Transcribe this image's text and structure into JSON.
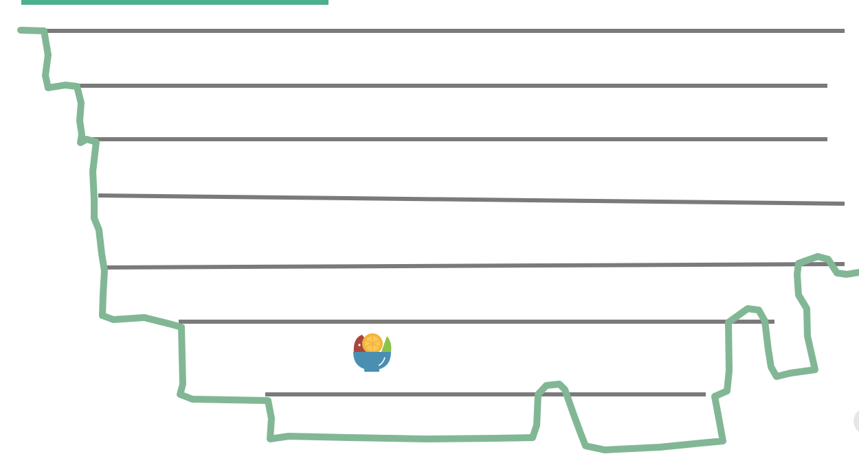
{
  "game": {
    "progress_bar_fraction": 0.36,
    "colors": {
      "progress_bar": "#4caf8e",
      "terrain_outline": "#82b795",
      "platform_lines": "#7a7a7a",
      "bowl": "#4a8fb2",
      "watermelon_slice": "#a9453f",
      "lemon_slice": "#f3b43a",
      "lime_slice": "#8bc34a"
    },
    "player_icon": "fruit-bowl-icon",
    "side_button_icon": "round-button",
    "platform_count": 7
  }
}
